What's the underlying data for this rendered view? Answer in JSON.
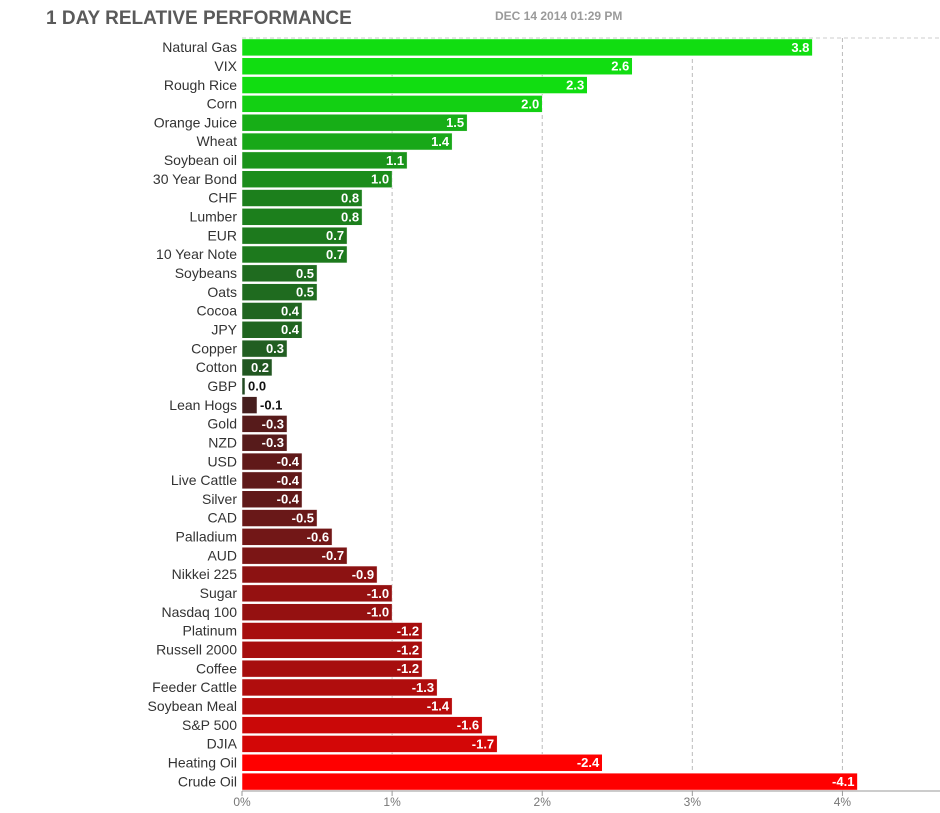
{
  "chart_data": {
    "type": "bar",
    "orientation": "horizontal",
    "bar_length": "magnitude",
    "title": "1 DAY RELATIVE PERFORMANCE",
    "subtitle": "DEC 14 2014 01:29 PM",
    "categories": [
      "Natural Gas",
      "VIX",
      "Rough Rice",
      "Corn",
      "Orange Juice",
      "Wheat",
      "Soybean oil",
      "30 Year Bond",
      "CHF",
      "Lumber",
      "EUR",
      "10 Year Note",
      "Soybeans",
      "Oats",
      "Cocoa",
      "JPY",
      "Copper",
      "Cotton",
      "GBP",
      "Lean Hogs",
      "Gold",
      "NZD",
      "USD",
      "Live Cattle",
      "Silver",
      "CAD",
      "Palladium",
      "AUD",
      "Nikkei 225",
      "Sugar",
      "Nasdaq 100",
      "Platinum",
      "Russell 2000",
      "Coffee",
      "Feeder Cattle",
      "Soybean Meal",
      "S&P 500",
      "DJIA",
      "Heating Oil",
      "Crude Oil"
    ],
    "values": [
      3.8,
      2.6,
      2.3,
      2.0,
      1.5,
      1.4,
      1.1,
      1.0,
      0.8,
      0.8,
      0.7,
      0.7,
      0.5,
      0.5,
      0.4,
      0.4,
      0.3,
      0.2,
      0.0,
      -0.1,
      -0.3,
      -0.3,
      -0.4,
      -0.4,
      -0.4,
      -0.5,
      -0.6,
      -0.7,
      -0.9,
      -1.0,
      -1.0,
      -1.2,
      -1.2,
      -1.2,
      -1.3,
      -1.4,
      -1.6,
      -1.7,
      -2.4,
      -4.1
    ],
    "value_labels": [
      "3.8",
      "2.6",
      "2.3",
      "2.0",
      "1.5",
      "1.4",
      "1.1",
      "1.0",
      "0.8",
      "0.8",
      "0.7",
      "0.7",
      "0.5",
      "0.5",
      "0.4",
      "0.4",
      "0.3",
      "0.2",
      "0.0",
      "-0.1",
      "-0.3",
      "-0.3",
      "-0.4",
      "-0.4",
      "-0.4",
      "-0.5",
      "-0.6",
      "-0.7",
      "-0.9",
      "-1.0",
      "-1.0",
      "-1.2",
      "-1.2",
      "-1.2",
      "-1.3",
      "-1.4",
      "-1.6",
      "-1.7",
      "-2.4",
      "-4.1"
    ],
    "colors": {
      "positive": [
        "#234a23",
        "#11dd11"
      ],
      "negative": [
        "#3d1f1f",
        "#ff0000"
      ]
    },
    "xlim": [
      0,
      4.65
    ],
    "xticks": [
      {
        "value": 0,
        "label": "0%"
      },
      {
        "value": 1,
        "label": "1%"
      },
      {
        "value": 2,
        "label": "2%"
      },
      {
        "value": 3,
        "label": "3%"
      },
      {
        "value": 4,
        "label": "4%"
      }
    ],
    "grid": true
  }
}
